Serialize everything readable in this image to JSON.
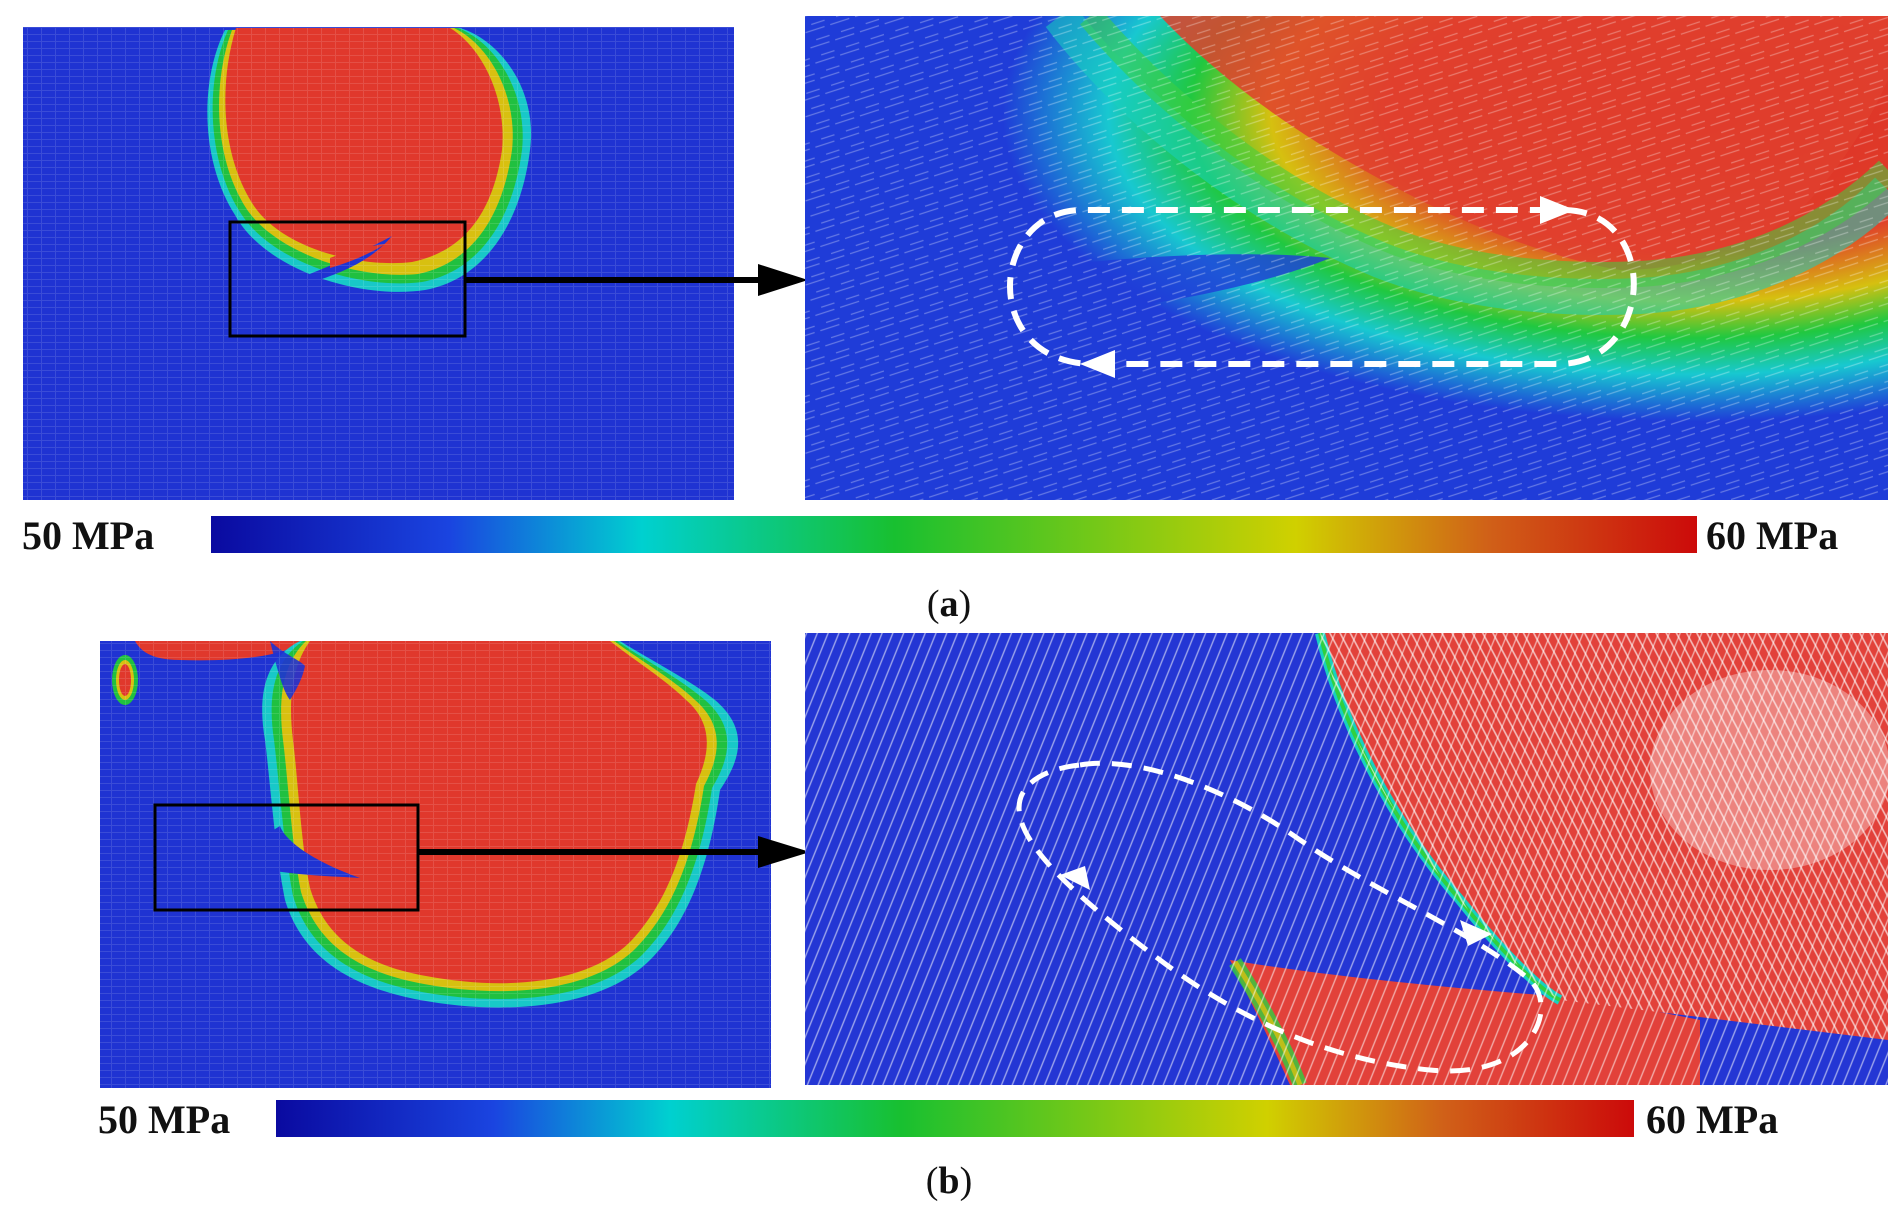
{
  "colors": {
    "low": "#1f2fd6",
    "high": "#e0372e",
    "colorbar_stops": [
      "#0a0aa0",
      "#1a44e0",
      "#00d0d0",
      "#18c030",
      "#d0d000",
      "#d06018",
      "#cc0a0a"
    ]
  },
  "panel_a": {
    "colorbar_min": "50 MPa",
    "colorbar_max": "60 MPa",
    "caption_open": "(",
    "caption_letter": "a",
    "caption_close": ")"
  },
  "panel_b": {
    "colorbar_min": "50 MPa",
    "colorbar_max": "60 MPa",
    "caption_open": "(",
    "caption_letter": "b",
    "caption_close": ")"
  }
}
